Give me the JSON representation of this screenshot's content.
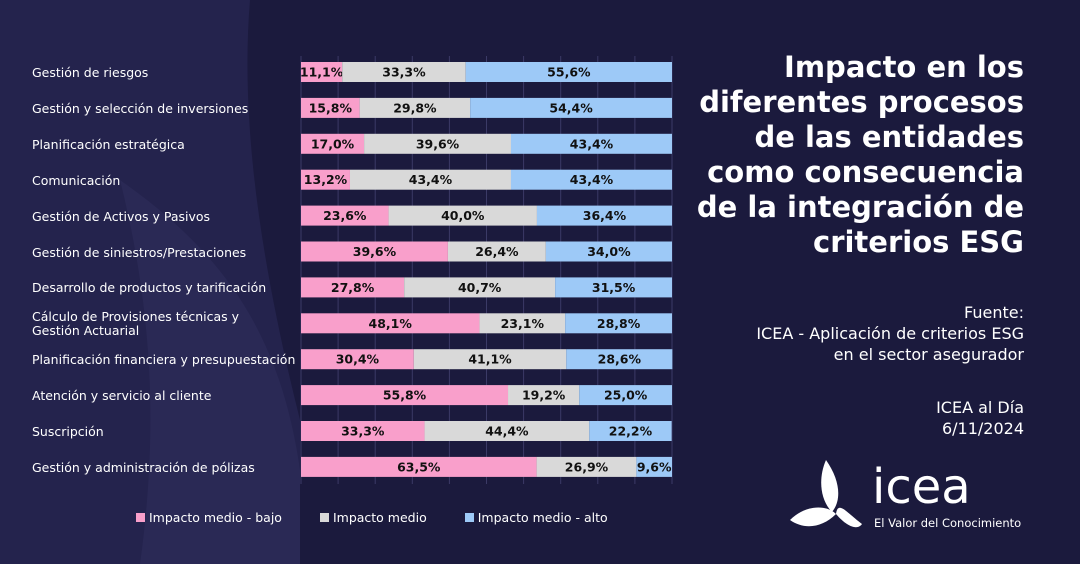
{
  "chart_data": {
    "type": "stacked-bar-horizontal",
    "title": "Impacto en los\ndiferentes procesos\nde las entidades\ncomo consecuencia\nde la integración de\ncriterios ESG",
    "source": "Fuente:\nICEA - Aplicación de criterios ESG\nen el sector asegurador",
    "publication": "ICEA al Día\n6/11/2024",
    "logo": {
      "name": "icea",
      "tagline": "El Valor del Conocimiento"
    },
    "categories": [
      "Gestión de riesgos",
      "Gestión y selección de inversiones",
      "Planificación estratégica",
      "Comunicación",
      "Gestión de Activos y Pasivos",
      "Gestión de siniestros/Prestaciones",
      "Desarrollo de productos y tarificación",
      "Cálculo de Provisiones técnicas y\nGestión Actuarial",
      "Planificación financiera y presupuestación",
      "Atención y servicio al cliente",
      "Suscripción",
      "Gestión y administración de pólizas"
    ],
    "series": [
      {
        "name": "Impacto medio - bajo",
        "color": "#f99fcb",
        "values": [
          11.1,
          15.8,
          17.0,
          13.2,
          23.6,
          39.6,
          27.8,
          48.1,
          30.4,
          55.8,
          33.3,
          63.5
        ],
        "value_labels": [
          "11,1%",
          "15,8%",
          "17,0%",
          "13,2%",
          "23,6%",
          "39,6%",
          "27,8%",
          "48,1%",
          "30,4%",
          "55,8%",
          "33,3%",
          "63,5%"
        ]
      },
      {
        "name": "Impacto medio",
        "color": "#d9d9d9",
        "values": [
          33.3,
          29.8,
          39.6,
          43.4,
          40.0,
          26.4,
          40.7,
          23.1,
          41.1,
          19.2,
          44.4,
          26.9
        ],
        "value_labels": [
          "33,3%",
          "29,8%",
          "39,6%",
          "43,4%",
          "40,0%",
          "26,4%",
          "40,7%",
          "23,1%",
          "41,1%",
          "19,2%",
          "44,4%",
          "26,9%"
        ]
      },
      {
        "name": "Impacto medio - alto",
        "color": "#9dc9f7",
        "values": [
          55.6,
          54.4,
          43.4,
          43.4,
          36.4,
          34.0,
          31.5,
          28.8,
          28.6,
          25.0,
          22.2,
          9.6
        ],
        "value_labels": [
          "55,6%",
          "54,4%",
          "43,4%",
          "43,4%",
          "36,4%",
          "34,0%",
          "31,5%",
          "28,8%",
          "28,6%",
          "25,0%",
          "22,2%",
          "9,6%"
        ]
      }
    ],
    "xlim": [
      0,
      100
    ],
    "xticks": [
      0,
      10,
      20,
      30,
      40,
      50,
      60,
      70,
      80,
      90,
      100
    ],
    "grid": true
  }
}
